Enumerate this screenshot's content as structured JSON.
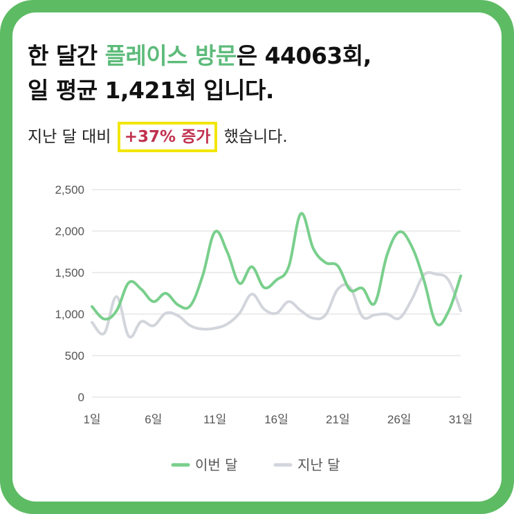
{
  "card": {
    "headline_line1_prefix": "한 달간 ",
    "headline_line1_accent": "플레이스 방문",
    "headline_line1_suffix": "은 44063회,",
    "headline_line2": "일 평균 1,421회 입니다.",
    "sub_prefix": "지난 달 대비 ",
    "sub_highlight": "+37% 증가",
    "sub_suffix": " 했습니다."
  },
  "colors": {
    "frame": "#5dbb63",
    "accent_text": "#5dbb7a",
    "highlight_text": "#c0324f",
    "highlight_border": "#f2e600",
    "this_month": "#79cf8c",
    "last_month": "#d3d5dc"
  },
  "chart_data": {
    "type": "line",
    "x": [
      1,
      2,
      3,
      4,
      5,
      6,
      7,
      8,
      9,
      10,
      11,
      12,
      13,
      14,
      15,
      16,
      17,
      18,
      19,
      20,
      21,
      22,
      23,
      24,
      25,
      26,
      27,
      28,
      29,
      30,
      31
    ],
    "x_tick_values": [
      1,
      6,
      11,
      16,
      21,
      26,
      31
    ],
    "x_tick_labels": [
      "1일",
      "6일",
      "11일",
      "16일",
      "21일",
      "26일",
      "31일"
    ],
    "y_ticks": [
      0,
      500,
      1000,
      1500,
      2000,
      2500
    ],
    "y_tick_labels": [
      "0",
      "500",
      "1,000",
      "1,500",
      "2,000",
      "2,500"
    ],
    "ylim": [
      0,
      2500
    ],
    "grid": "horizontal",
    "legend_position": "bottom",
    "series": [
      {
        "name": "이번 달",
        "color": "#79cf8c",
        "values": [
          1090,
          940,
          1040,
          1380,
          1300,
          1150,
          1250,
          1110,
          1100,
          1460,
          1990,
          1750,
          1370,
          1570,
          1320,
          1410,
          1570,
          2210,
          1790,
          1620,
          1580,
          1290,
          1310,
          1130,
          1710,
          1990,
          1820,
          1410,
          890,
          1030,
          1460
        ]
      },
      {
        "name": "지난 달",
        "color": "#d3d5dc",
        "values": [
          900,
          770,
          1210,
          730,
          910,
          860,
          1010,
          980,
          860,
          820,
          830,
          880,
          1010,
          1240,
          1060,
          1010,
          1150,
          1040,
          950,
          990,
          1300,
          1320,
          970,
          990,
          1000,
          950,
          1170,
          1470,
          1480,
          1410,
          1040
        ]
      }
    ]
  }
}
